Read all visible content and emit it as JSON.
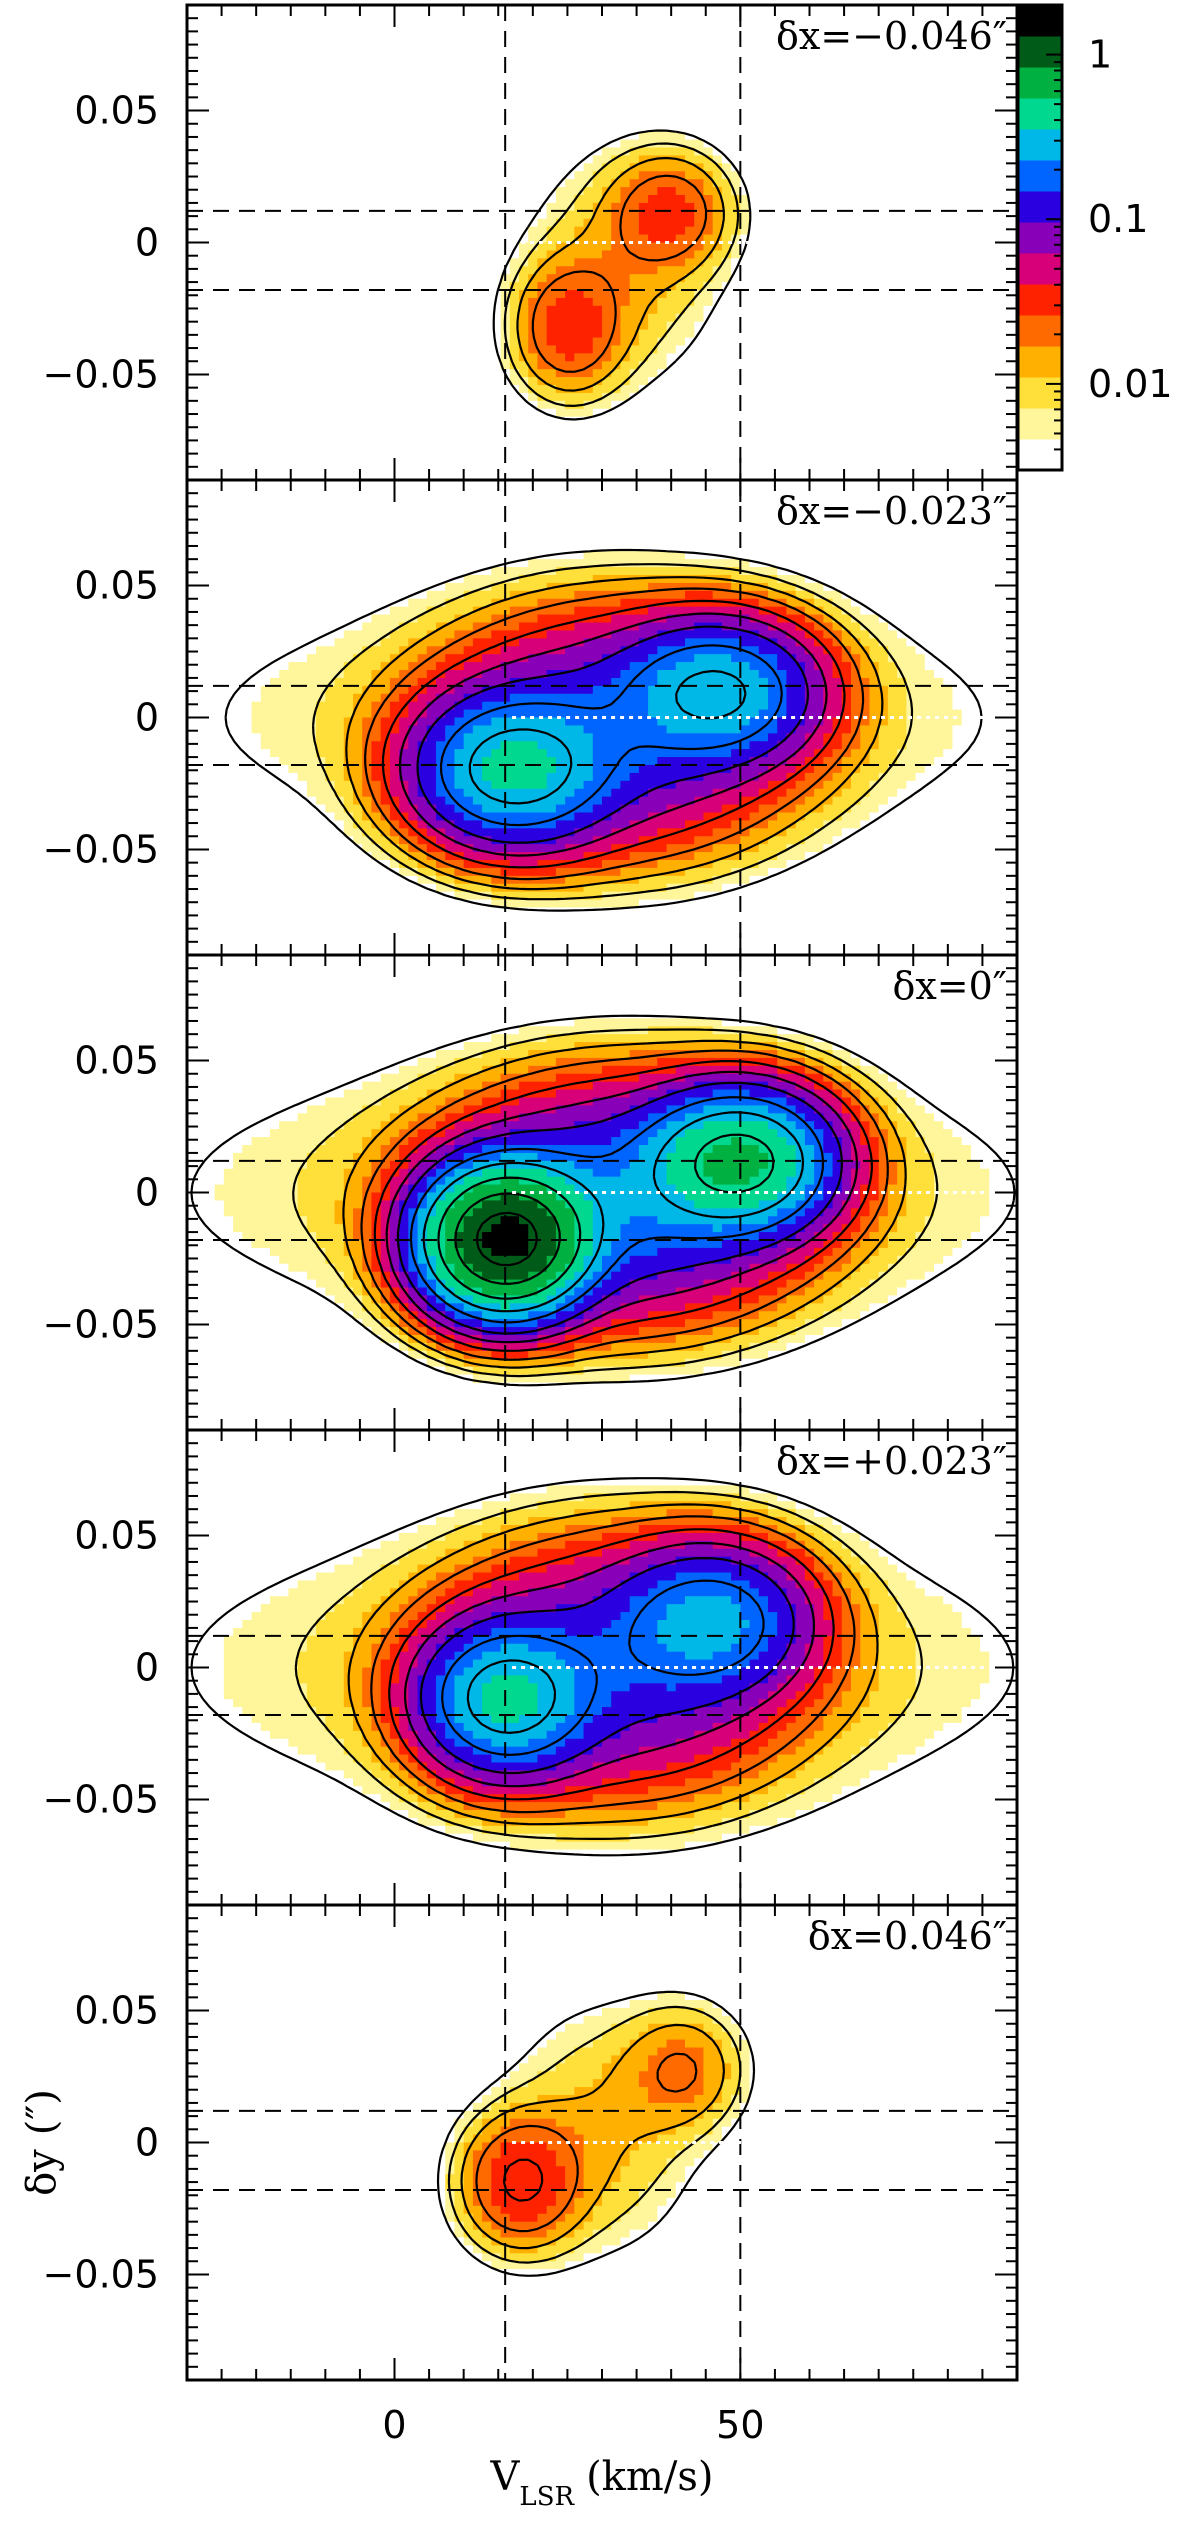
{
  "chart_data": {
    "type": "heatmap",
    "description_kind": "position-velocity diagrams (contour + colour), five stacked panels",
    "xlabel": "V",
    "xlabel_sub": "LSR",
    "xlabel_unit": "(km/s)",
    "ylabel": "δy",
    "ylabel_unit": "(″)",
    "xlim": [
      -30,
      90
    ],
    "ylim": [
      -0.09,
      0.09
    ],
    "x_ticks": [
      0,
      50
    ],
    "x_tick_labels": [
      "0",
      "50"
    ],
    "y_ticks": [
      -0.05,
      0,
      0.05
    ],
    "y_tick_labels": [
      "−0.05",
      "0",
      "0.05"
    ],
    "reference_lines": {
      "vertical_dashed_x": [
        16,
        50
      ],
      "horizontal_dashed_y": [
        0.012,
        -0.018
      ],
      "horizontal_dotted_white_y": 0
    },
    "colorbar": {
      "scale": "log",
      "range": [
        0.003,
        2
      ],
      "ticks": [
        1,
        0.1,
        0.01
      ],
      "tick_labels": [
        "1",
        "0.1",
        "0.01"
      ],
      "colors": [
        "#ffffff",
        "#fff59a",
        "#ffe03a",
        "#ffb000",
        "#ff6a00",
        "#ff2200",
        "#d80078",
        "#8800b8",
        "#2a00e0",
        "#0064ff",
        "#00b8e8",
        "#00d890",
        "#00b040",
        "#005a18",
        "#000000"
      ]
    },
    "panels": [
      {
        "label": "δx=−0.046″",
        "blobs": [
          {
            "v": 40,
            "y": 0.012,
            "peak": 0.025,
            "sv": 5.5,
            "sy": 0.014
          },
          {
            "v": 25,
            "y": -0.033,
            "peak": 0.028,
            "sv": 5.0,
            "sy": 0.016
          },
          {
            "v": 33,
            "y": -0.01,
            "peak": 0.012,
            "sv": 9,
            "sy": 0.028
          }
        ]
      },
      {
        "label": "δx=−0.023″",
        "blobs": [
          {
            "v": 47,
            "y": 0.01,
            "peak": 0.28,
            "sv": 8,
            "sy": 0.015
          },
          {
            "v": 17,
            "y": -0.02,
            "peak": 0.35,
            "sv": 8,
            "sy": 0.016
          },
          {
            "v": 32,
            "y": -0.005,
            "peak": 0.12,
            "sv": 14,
            "sy": 0.025
          },
          {
            "v": 30,
            "y": 0.0,
            "peak": 0.01,
            "sv": 40,
            "sy": 0.03
          }
        ]
      },
      {
        "label": "δx=0″",
        "blobs": [
          {
            "v": 50,
            "y": 0.012,
            "peak": 0.55,
            "sv": 7.5,
            "sy": 0.015
          },
          {
            "v": 16,
            "y": -0.018,
            "peak": 1.4,
            "sv": 6.5,
            "sy": 0.015
          },
          {
            "v": 33,
            "y": -0.003,
            "peak": 0.18,
            "sv": 14,
            "sy": 0.024
          },
          {
            "v": 30,
            "y": 0.0,
            "peak": 0.012,
            "sv": 40,
            "sy": 0.032
          }
        ]
      },
      {
        "label": "δx=+0.023″",
        "blobs": [
          {
            "v": 46,
            "y": 0.018,
            "peak": 0.22,
            "sv": 8,
            "sy": 0.016
          },
          {
            "v": 16,
            "y": -0.012,
            "peak": 0.35,
            "sv": 7,
            "sy": 0.016
          },
          {
            "v": 32,
            "y": 0.0,
            "peak": 0.11,
            "sv": 14,
            "sy": 0.026
          },
          {
            "v": 30,
            "y": 0.0,
            "peak": 0.012,
            "sv": 40,
            "sy": 0.034
          }
        ]
      },
      {
        "label": "δx=0.046″",
        "blobs": [
          {
            "v": 42,
            "y": 0.028,
            "peak": 0.018,
            "sv": 5.5,
            "sy": 0.015
          },
          {
            "v": 18,
            "y": -0.015,
            "peak": 0.035,
            "sv": 5.5,
            "sy": 0.016
          },
          {
            "v": 30,
            "y": 0.005,
            "peak": 0.012,
            "sv": 9,
            "sy": 0.03
          }
        ]
      }
    ]
  }
}
